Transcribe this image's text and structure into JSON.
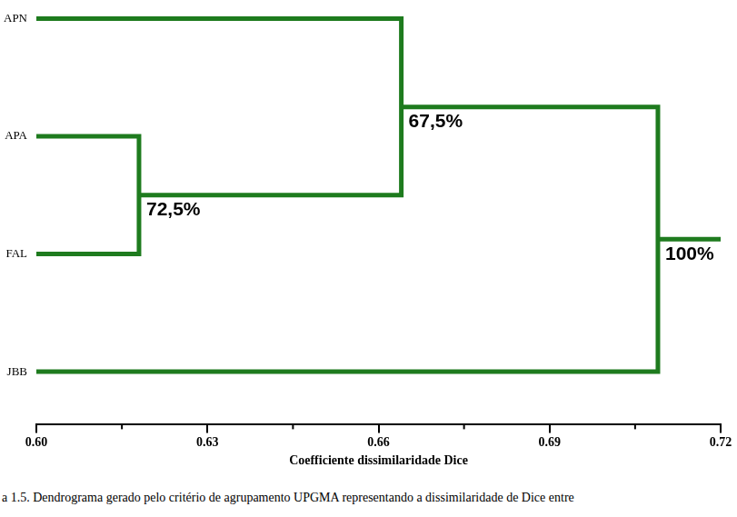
{
  "chart_data": {
    "type": "dendrogram",
    "x_label": "Coefficiente dissimilaridade Dice",
    "leaves": [
      "APN",
      "APA",
      "FAL",
      "JBB"
    ],
    "nodes": [
      {
        "children": [
          "APA",
          "FAL"
        ],
        "height": 0.618,
        "support": 72.5,
        "support_label": "72,5%"
      },
      {
        "children": [
          "APN",
          0
        ],
        "height": 0.664,
        "support": 67.5,
        "support_label": "67,5%"
      },
      {
        "children": [
          1,
          "JBB"
        ],
        "height": 0.709,
        "support": 100,
        "support_label": "100%"
      }
    ],
    "color": "#1e7b1e",
    "xlim": [
      0.6,
      0.72
    ],
    "xticks": [
      {
        "value": 0.6,
        "label": "0.60"
      },
      0.63,
      0.66,
      0.69,
      0.72
    ],
    "grid": false
  },
  "caption": "a 1.5. Dendrograma gerado pelo critério de agrupamento UPGMA representando a dissimilaridade de Dice entre"
}
